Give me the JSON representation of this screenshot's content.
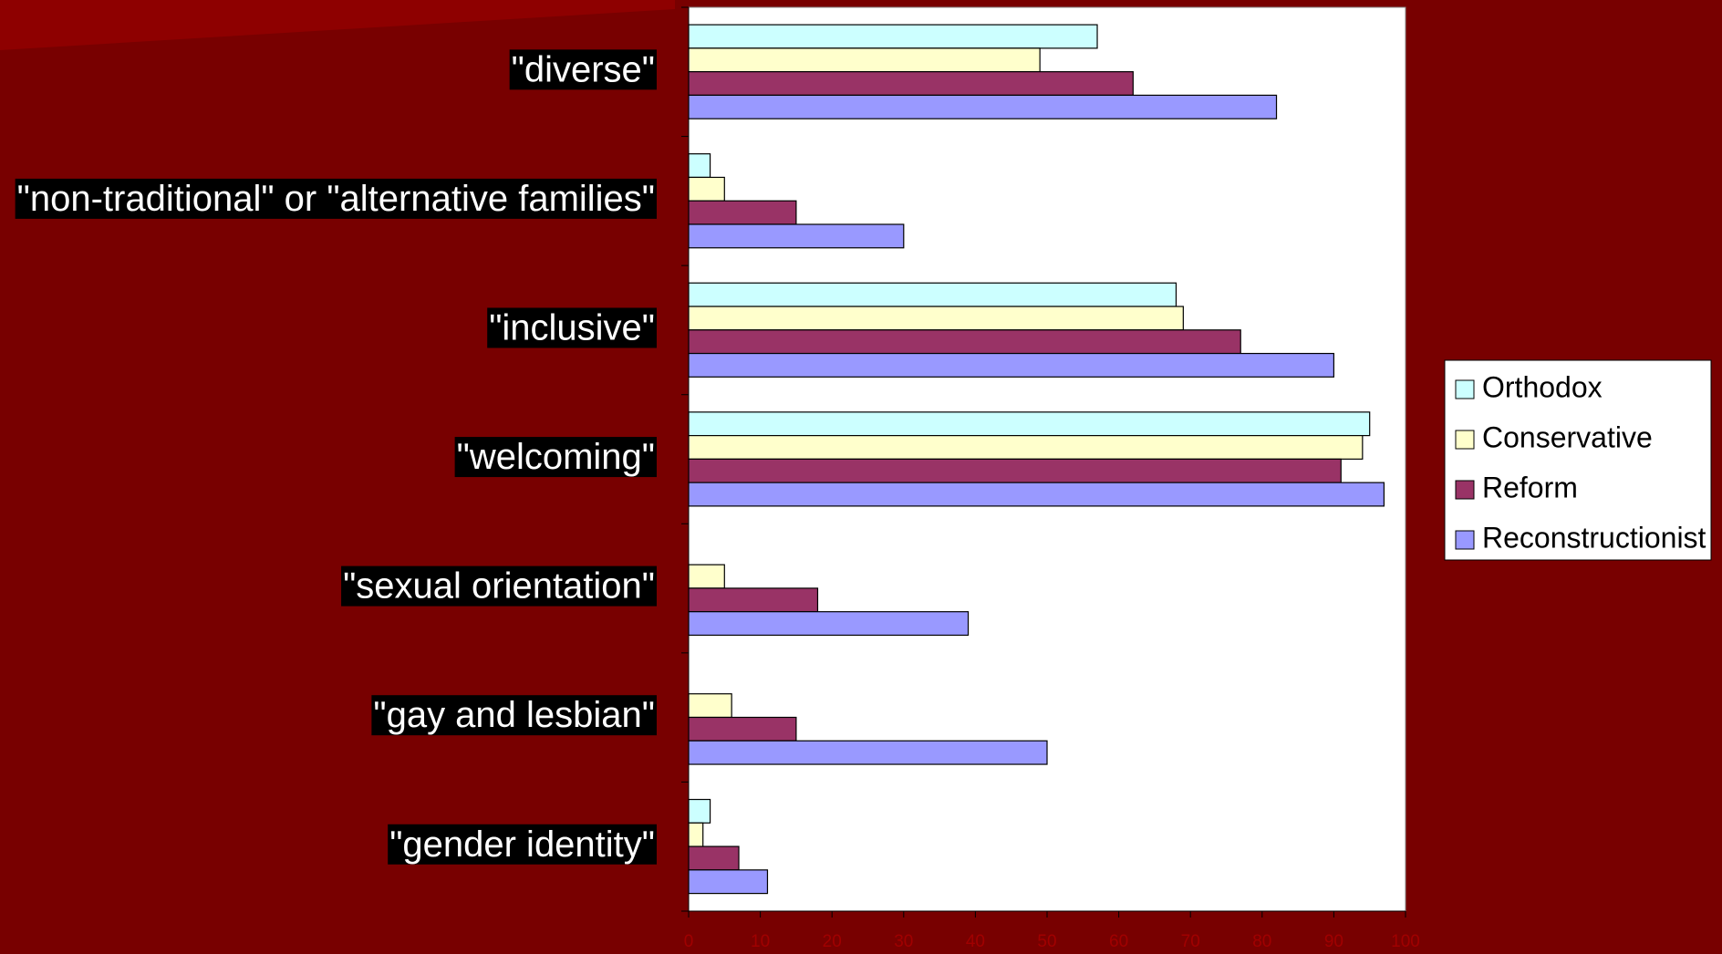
{
  "chart_data": {
    "type": "bar",
    "orientation": "horizontal",
    "categories": [
      "\"diverse\"",
      "\"non-traditional\" or \"alternative families\"",
      "\"inclusive\"",
      "\"welcoming\"",
      "\"sexual orientation\"",
      "\"gay and lesbian\"",
      "\"gender identity\""
    ],
    "series": [
      {
        "name": "Orthodox",
        "color": "#ccffff",
        "values": [
          57,
          3,
          68,
          95,
          0,
          0,
          3
        ]
      },
      {
        "name": "Conservative",
        "color": "#ffffcc",
        "values": [
          49,
          5,
          69,
          94,
          5,
          6,
          2
        ]
      },
      {
        "name": "Reform",
        "color": "#993366",
        "values": [
          62,
          15,
          77,
          91,
          18,
          15,
          7
        ]
      },
      {
        "name": "Reconstructionist",
        "color": "#9999ff",
        "values": [
          82,
          30,
          90,
          97,
          39,
          50,
          11
        ]
      }
    ],
    "xlim": [
      0,
      100
    ],
    "xticks": [
      0,
      10,
      20,
      30,
      40,
      50,
      60,
      70,
      80,
      90,
      100
    ],
    "legend": "right"
  }
}
